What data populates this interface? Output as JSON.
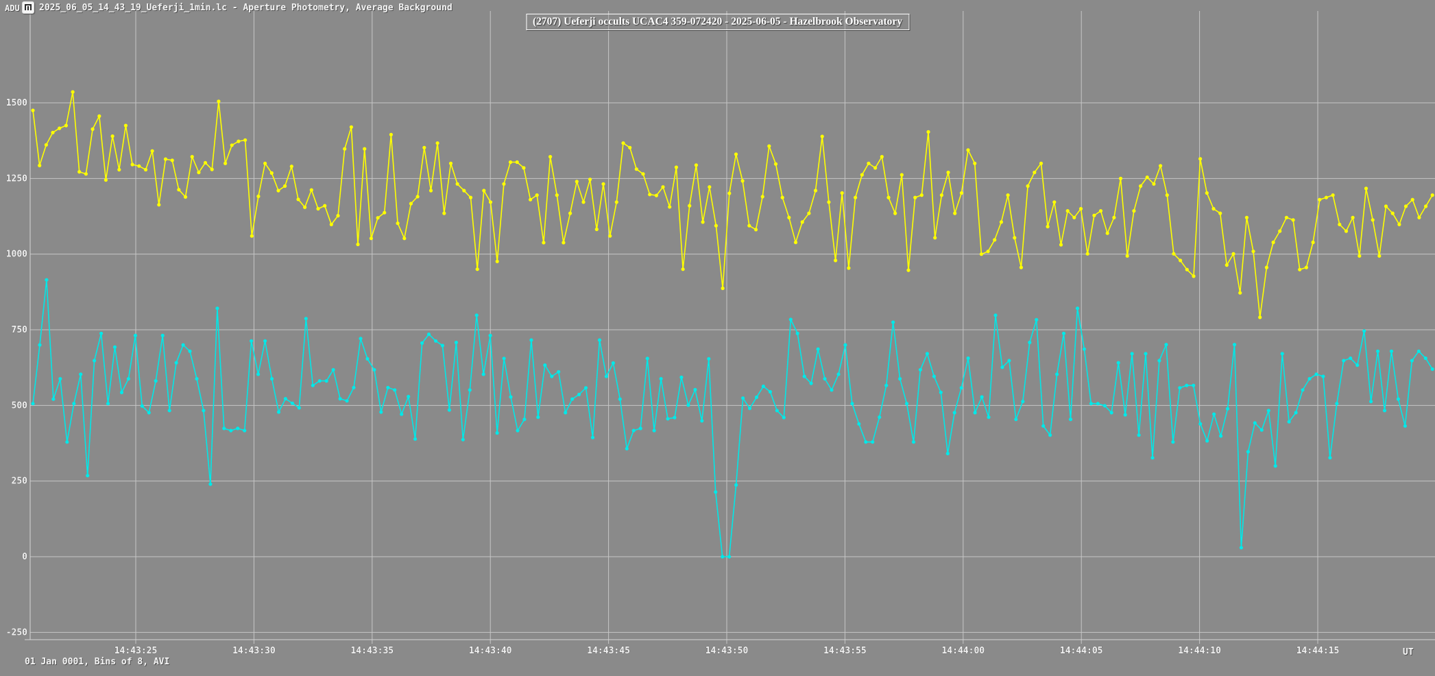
{
  "header": {
    "adu_label": "ADU",
    "icon": "app-icon",
    "window_title": "2025_06_05_14_43_19_Ueferji_1min.lc - Aperture Photometry, Average Background"
  },
  "title_box": {
    "text": "(2707) Ueferji occults UCAC4 359-072420 - 2025-06-05 - Hazelbrook Observatory"
  },
  "footer": {
    "note": "01 Jan 0001, Bins of 8, AVI",
    "x_unit_label": "UT"
  },
  "colors": {
    "background": "#8a8a8a",
    "grid": "#c6c6c6",
    "axis": "#d6d6d6",
    "text": "#f2f2f2",
    "series_yellow": "#ffff00",
    "series_cyan": "#00e8e8"
  },
  "chart_data": {
    "type": "line",
    "title": "(2707) Ueferji occults UCAC4 359-072420 - 2025-06-05 - Hazelbrook Observatory",
    "xlabel": "UT",
    "ylabel": "ADU",
    "grid": true,
    "legend_position": "none",
    "y_ticks": [
      1500,
      1250,
      1000,
      750,
      500,
      250,
      0,
      -250
    ],
    "x_ticks_seconds_after_14_43_00": [
      25,
      30,
      35,
      40,
      45,
      50,
      55,
      60,
      65,
      70,
      75
    ],
    "x_tick_labels": [
      "14:43:25",
      "14:43:30",
      "14:43:35",
      "14:43:40",
      "14:43:45",
      "14:43:50",
      "14:43:55",
      "14:44:00",
      "14:44:05",
      "14:44:10",
      "14:44:15"
    ],
    "x_range_seconds": [
      20.6,
      80.0
    ],
    "ylim": [
      -270,
      1810
    ],
    "occultation_event": {
      "series": "cyan",
      "drop_to": 0,
      "time_label": "14:43:50",
      "note_second_dip_time_label": "14:44:12"
    },
    "series": [
      {
        "name": "yellow",
        "color": "#ffff00",
        "x_start_s": 20.65,
        "x_end_s": 79.85,
        "values": [
          1475,
          1293,
          1361,
          1402,
          1416,
          1425,
          1536,
          1272,
          1265,
          1413,
          1456,
          1245,
          1390,
          1279,
          1425,
          1296,
          1291,
          1279,
          1341,
          1163,
          1314,
          1310,
          1213,
          1189,
          1322,
          1270,
          1302,
          1280,
          1505,
          1300,
          1360,
          1373,
          1377,
          1060,
          1191,
          1300,
          1268,
          1210,
          1225,
          1290,
          1181,
          1155,
          1212,
          1150,
          1160,
          1098,
          1127,
          1348,
          1420,
          1032,
          1348,
          1052,
          1120,
          1137,
          1395,
          1102,
          1052,
          1167,
          1190,
          1352,
          1210,
          1367,
          1135,
          1300,
          1232,
          1210,
          1187,
          950,
          1210,
          1172,
          976,
          1232,
          1304,
          1304,
          1285,
          1180,
          1195,
          1038,
          1322,
          1195,
          1038,
          1135,
          1240,
          1172,
          1247,
          1082,
          1232,
          1060,
          1172,
          1367,
          1352,
          1281,
          1265,
          1197,
          1194,
          1222,
          1156,
          1287,
          950,
          1160,
          1294,
          1106,
          1222,
          1094,
          887,
          1201,
          1330,
          1242,
          1094,
          1081,
          1190,
          1357,
          1298,
          1187,
          1121,
          1039,
          1106,
          1135,
          1210,
          1389,
          1172,
          979,
          1202,
          954,
          1187,
          1262,
          1300,
          1285,
          1322,
          1187,
          1135,
          1262,
          947,
          1187,
          1195,
          1404,
          1054,
          1195,
          1270,
          1135,
          1202,
          1344,
          1300,
          1000,
          1009,
          1047,
          1106,
          1195,
          1054,
          956,
          1225,
          1270,
          1300,
          1091,
          1172,
          1031,
          1143,
          1121,
          1150,
          1001,
          1128,
          1143,
          1069,
          1121,
          1250,
          994,
          1143,
          1225,
          1254,
          1232,
          1292,
          1195,
          1001,
          979,
          949,
          927,
          1315,
          1202,
          1150,
          1135,
          964,
          1001,
          872,
          1121,
          1009,
          791,
          956,
          1039,
          1076,
          1121,
          1113,
          949,
          956,
          1039,
          1180,
          1187,
          1195,
          1098,
          1076,
          1121,
          994,
          1217,
          1113,
          994,
          1158,
          1135,
          1098,
          1158,
          1180,
          1121,
          1158,
          1195
        ]
      },
      {
        "name": "cyan",
        "color": "#00e8e8",
        "x_start_s": 20.65,
        "x_end_s": 79.85,
        "values": [
          506,
          700,
          915,
          521,
          588,
          379,
          506,
          603,
          268,
          648,
          738,
          506,
          693,
          543,
          588,
          731,
          498,
          476,
          581,
          731,
          483,
          641,
          700,
          679,
          588,
          483,
          240,
          821,
          424,
          417,
          424,
          417,
          713,
          603,
          713,
          588,
          478,
          522,
          507,
          492,
          787,
          566,
          581,
          581,
          618,
          522,
          515,
          559,
          721,
          654,
          618,
          478,
          559,
          551,
          471,
          529,
          389,
          706,
          735,
          713,
          698,
          485,
          708,
          387,
          551,
          798,
          603,
          731,
          409,
          655,
          528,
          417,
          454,
          716,
          461,
          633,
          596,
          611,
          476,
          521,
          536,
          558,
          394,
          716,
          596,
          640,
          521,
          357,
          417,
          424,
          655,
          417,
          588,
          456,
          460,
          593,
          501,
          552,
          449,
          654,
          214,
          0,
          0,
          237,
          524,
          490,
          527,
          563,
          545,
          483,
          460,
          784,
          738,
          596,
          573,
          686,
          588,
          551,
          603,
          700,
          506,
          439,
          379,
          379,
          461,
          566,
          775,
          588,
          506,
          379,
          618,
          671,
          596,
          543,
          341,
          476,
          558,
          656,
          476,
          528,
          461,
          798,
          626,
          648,
          454,
          513,
          708,
          783,
          432,
          402,
          603,
          738,
          454,
          821,
          686,
          506,
          506,
          499,
          476,
          641,
          469,
          671,
          402,
          671,
          327,
          648,
          701,
          379,
          558,
          566,
          566,
          439,
          383,
          471,
          399,
          489,
          701,
          30,
          347,
          442,
          419,
          483,
          300,
          671,
          446,
          476,
          551,
          588,
          603,
          596,
          327,
          506,
          648,
          656,
          633,
          746,
          513,
          679,
          483,
          679,
          521,
          432,
          648,
          679,
          656,
          620
        ]
      }
    ]
  }
}
